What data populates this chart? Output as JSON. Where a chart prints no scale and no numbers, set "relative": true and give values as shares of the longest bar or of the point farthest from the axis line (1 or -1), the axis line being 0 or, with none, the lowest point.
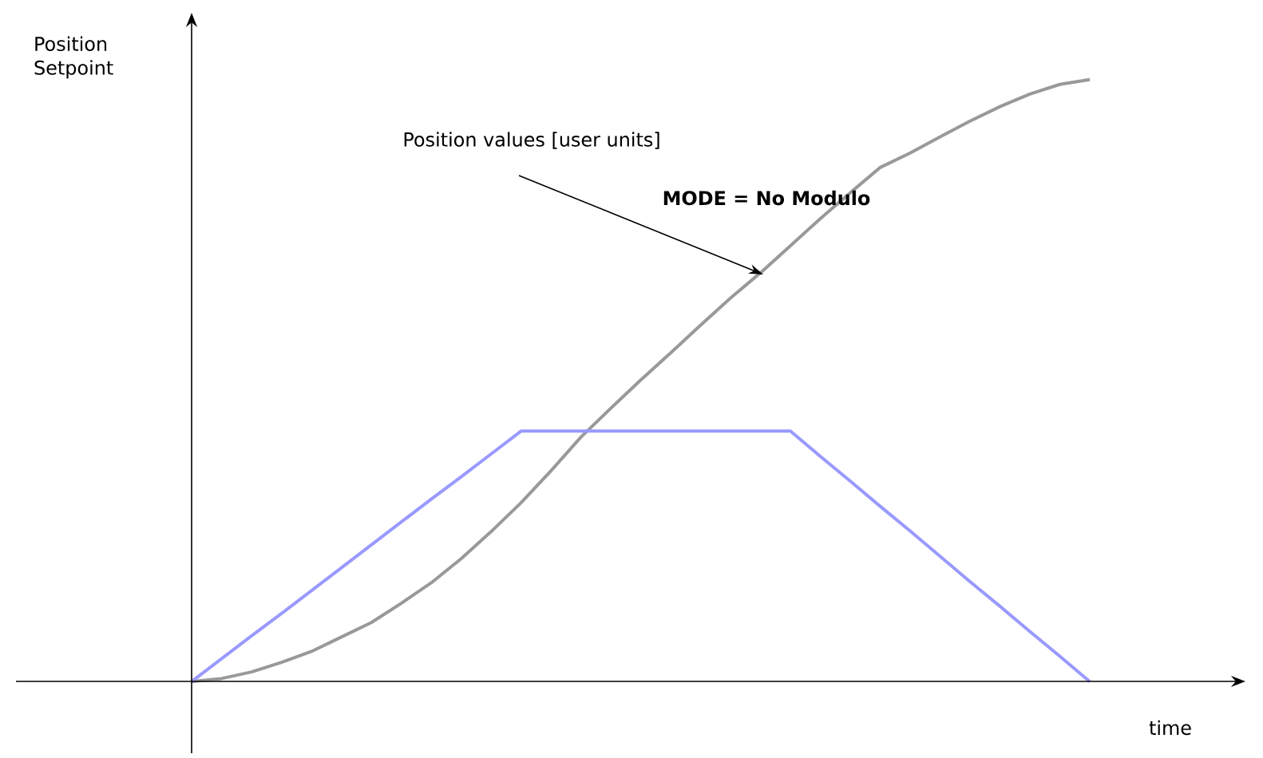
{
  "chart_data": {
    "type": "line",
    "relative": true,
    "xlabel": "time",
    "ylabel": "Position Setpoint",
    "categories": [
      null,
      null,
      null,
      null,
      null,
      null,
      null,
      null,
      null,
      null,
      null,
      null,
      null,
      null,
      null,
      null,
      null,
      null,
      null,
      null,
      null,
      null,
      null,
      null,
      null,
      null,
      null,
      null,
      null,
      null,
      null
    ],
    "series": [
      {
        "color": "#999999",
        "values": [
          0,
          0.005,
          0.016,
          0.032,
          0.05,
          0.074,
          0.098,
          0.13,
          0.164,
          0.204,
          0.249,
          0.297,
          0.35,
          0.406,
          0.454,
          0.501,
          0.546,
          0.592,
          0.637,
          0.679,
          0.724,
          0.769,
          0.812,
          0.854,
          0.878,
          0.905,
          0.931,
          0.955,
          0.976,
          0.992,
          1.0
        ]
      },
      {
        "color": "#9999ff",
        "values": [
          0,
          0.038,
          0.076,
          0.113,
          0.151,
          0.189,
          0.227,
          0.265,
          0.303,
          0.34,
          0.378,
          0.416,
          0.416,
          0.416,
          0.416,
          0.416,
          0.416,
          0.416,
          0.416,
          0.416,
          0.416,
          0.374,
          0.333,
          0.291,
          0.25,
          0.208,
          0.166,
          0.125,
          0.083,
          0.042,
          0
        ]
      }
    ],
    "annotations": [
      "Position values [user units]",
      "MODE = No Modulo"
    ]
  }
}
